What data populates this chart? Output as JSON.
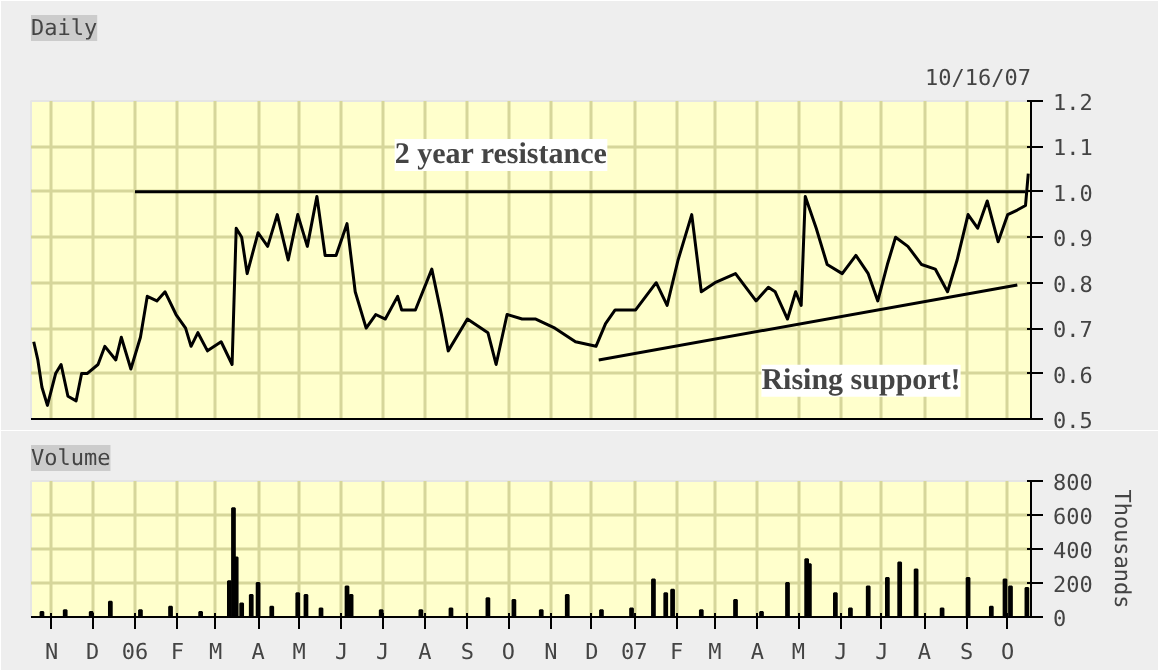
{
  "chart_data": [
    {
      "type": "line",
      "title": "Daily",
      "marker": "none",
      "line_style": "solid",
      "grid": true,
      "tick_labels": "y",
      "xlim": [
        "2005-10-17",
        "2007-10-18"
      ],
      "ylim": [
        0.5,
        1.2
      ],
      "yticks": [
        0.5,
        0.6,
        0.7,
        0.8,
        0.9,
        {
          "value": 1.0,
          "label": "1.0"
        },
        1.1,
        1.2
      ],
      "xticks": [
        {
          "value": "2005-11-01",
          "label": null
        },
        {
          "value": "2005-12-01",
          "label": null
        },
        {
          "value": "2006-01-01",
          "label": null
        },
        {
          "value": "2006-02-01",
          "label": null
        },
        {
          "value": "2006-03-01",
          "label": null
        },
        {
          "value": "2006-04-01",
          "label": null
        },
        {
          "value": "2006-05-01",
          "label": null
        },
        {
          "value": "2006-06-01",
          "label": null
        },
        {
          "value": "2006-07-01",
          "label": null
        },
        {
          "value": "2006-08-01",
          "label": null
        },
        {
          "value": "2006-09-01",
          "label": null
        },
        {
          "value": "2006-10-01",
          "label": null
        },
        {
          "value": "2006-11-01",
          "label": null
        },
        {
          "value": "2006-12-01",
          "label": null
        },
        {
          "value": "2007-01-01",
          "label": null
        },
        {
          "value": "2007-02-01",
          "label": null
        },
        {
          "value": "2007-03-01",
          "label": null
        },
        {
          "value": "2007-04-01",
          "label": null
        },
        {
          "value": "2007-05-01",
          "label": null
        },
        {
          "value": "2007-06-01",
          "label": null
        },
        {
          "value": "2007-07-01",
          "label": null
        },
        {
          "value": "2007-08-01",
          "label": null
        },
        {
          "value": "2007-09-01",
          "label": null
        },
        {
          "value": "2007-10-01",
          "label": null
        }
      ],
      "annotations": [
        "10/16/07",
        "2 year resistance",
        "Rising support!"
      ],
      "series": [
        {
          "color": "#000000",
          "x": [
            "2005-10-19",
            "2005-10-22",
            "2005-10-25",
            "2005-10-29",
            "2005-11-04",
            "2005-11-08",
            "2005-11-13",
            "2005-11-19",
            "2005-11-23",
            "2005-11-27",
            "2005-12-05",
            "2005-12-10",
            "2005-12-18",
            "2005-12-22",
            "2005-12-29",
            "2006-01-05",
            "2006-01-10",
            "2006-01-17",
            "2006-01-23",
            "2006-01-31",
            "2006-02-07",
            "2006-02-11",
            "2006-02-16",
            "2006-02-23",
            "2006-03-05",
            "2006-03-13",
            "2006-03-16",
            "2006-03-20",
            "2006-03-24",
            "2006-04-01",
            "2006-04-08",
            "2006-04-15",
            "2006-04-23",
            "2006-04-30",
            "2006-05-07",
            "2006-05-14",
            "2006-05-20",
            "2006-05-28",
            "2006-06-05",
            "2006-06-11",
            "2006-06-19",
            "2006-06-26",
            "2006-07-03",
            "2006-07-12",
            "2006-07-15",
            "2006-07-25",
            "2006-08-06",
            "2006-08-13",
            "2006-08-18",
            "2006-09-01",
            "2006-09-16",
            "2006-09-22",
            "2006-09-30",
            "2006-10-11",
            "2006-10-21",
            "2006-11-04",
            "2006-11-19",
            "2006-12-04",
            "2006-12-11",
            "2006-12-18",
            "2007-01-02",
            "2007-01-17",
            "2007-01-25",
            "2007-02-02",
            "2007-02-12",
            "2007-02-19",
            "2007-03-01",
            "2007-03-16",
            "2007-03-31",
            "2007-04-09",
            "2007-04-14",
            "2007-04-23",
            "2007-04-29",
            "2007-05-03",
            "2007-05-06",
            "2007-05-14",
            "2007-05-22",
            "2007-06-02",
            "2007-06-12",
            "2007-06-21",
            "2007-06-28",
            "2007-07-05",
            "2007-07-11",
            "2007-07-20",
            "2007-07-30",
            "2007-08-09",
            "2007-08-18",
            "2007-08-25",
            "2007-09-02",
            "2007-09-09",
            "2007-09-16",
            "2007-09-24",
            "2007-10-01",
            "2007-10-08",
            "2007-10-14",
            "2007-10-16"
          ],
          "values": [
            0.67,
            0.63,
            0.57,
            0.53,
            0.6,
            0.62,
            0.55,
            0.54,
            0.6,
            0.6,
            0.62,
            0.66,
            0.63,
            0.68,
            0.61,
            0.68,
            0.77,
            0.76,
            0.78,
            0.73,
            0.7,
            0.66,
            0.69,
            0.65,
            0.67,
            0.62,
            0.92,
            0.9,
            0.82,
            0.91,
            0.88,
            0.95,
            0.85,
            0.95,
            0.88,
            0.99,
            0.86,
            0.86,
            0.93,
            0.78,
            0.7,
            0.73,
            0.72,
            0.77,
            0.74,
            0.74,
            0.83,
            0.73,
            0.65,
            0.72,
            0.69,
            0.62,
            0.73,
            0.72,
            0.72,
            0.7,
            0.67,
            0.66,
            0.71,
            0.74,
            0.74,
            0.8,
            0.75,
            0.85,
            0.95,
            0.78,
            0.8,
            0.82,
            0.76,
            0.79,
            0.78,
            0.72,
            0.78,
            0.75,
            0.99,
            0.92,
            0.84,
            0.82,
            0.86,
            0.82,
            0.76,
            0.84,
            0.9,
            0.88,
            0.84,
            0.83,
            0.78,
            0.85,
            0.95,
            0.92,
            0.98,
            0.89,
            0.95,
            0.96,
            0.97,
            1.04
          ]
        },
        {
          "color": "#000000",
          "x": [
            "2006-01-01",
            "2007-10-14"
          ],
          "values": [
            1.0,
            1.0
          ]
        },
        {
          "color": "#000000",
          "x": [
            "2006-12-06",
            "2007-10-08"
          ],
          "values": [
            0.63,
            0.795
          ]
        }
      ]
    },
    {
      "type": "bar",
      "title": "Volume",
      "ylabel": "Thousands",
      "grid": true,
      "xlim": [
        "2005-10-17",
        "2007-10-18"
      ],
      "ylim": [
        0,
        800
      ],
      "yticks": [
        0,
        200,
        400,
        600,
        800
      ],
      "xticks": [
        {
          "value": "2005-11-01",
          "label": "N"
        },
        {
          "value": "2005-12-01",
          "label": "D"
        },
        {
          "value": "2006-01-01",
          "label": "06"
        },
        {
          "value": "2006-02-01",
          "label": "F"
        },
        {
          "value": "2006-03-01",
          "label": "M"
        },
        {
          "value": "2006-04-01",
          "label": "A"
        },
        {
          "value": "2006-05-01",
          "label": "M"
        },
        {
          "value": "2006-06-01",
          "label": "J"
        },
        {
          "value": "2006-07-01",
          "label": "J"
        },
        {
          "value": "2006-08-01",
          "label": "A"
        },
        {
          "value": "2006-09-01",
          "label": "S"
        },
        {
          "value": "2006-10-01",
          "label": "O"
        },
        {
          "value": "2006-11-01",
          "label": "N"
        },
        {
          "value": "2006-12-01",
          "label": "D"
        },
        {
          "value": "2007-01-01",
          "label": "07"
        },
        {
          "value": "2007-02-01",
          "label": "F"
        },
        {
          "value": "2007-03-01",
          "label": "M"
        },
        {
          "value": "2007-04-01",
          "label": "A"
        },
        {
          "value": "2007-05-01",
          "label": "M"
        },
        {
          "value": "2007-06-01",
          "label": "J"
        },
        {
          "value": "2007-07-01",
          "label": "J"
        },
        {
          "value": "2007-08-01",
          "label": "A"
        },
        {
          "value": "2007-09-01",
          "label": "S"
        },
        {
          "value": "2007-10-01",
          "label": "O"
        }
      ],
      "series": [
        {
          "color": "#000000",
          "x": [
            "2005-10-25",
            "2005-11-11",
            "2005-11-30",
            "2005-12-14",
            "2006-01-05",
            "2006-01-27",
            "2006-02-18",
            "2006-03-11",
            "2006-03-14",
            "2006-03-16",
            "2006-03-20",
            "2006-03-27",
            "2006-04-01",
            "2006-04-11",
            "2006-04-30",
            "2006-05-06",
            "2006-05-17",
            "2006-06-05",
            "2006-06-08",
            "2006-06-30",
            "2006-07-29",
            "2006-08-20",
            "2006-09-16",
            "2006-10-05",
            "2006-10-25",
            "2006-11-13",
            "2006-12-08",
            "2006-12-30",
            "2007-01-15",
            "2007-01-24",
            "2007-01-29",
            "2007-02-19",
            "2007-03-16",
            "2007-04-04",
            "2007-04-23",
            "2007-05-07",
            "2007-05-09",
            "2007-05-28",
            "2007-06-08",
            "2007-06-21",
            "2007-07-05",
            "2007-07-14",
            "2007-07-26",
            "2007-08-14",
            "2007-09-02",
            "2007-09-19",
            "2007-09-29",
            "2007-10-03",
            "2007-10-15"
          ],
          "values": [
            30,
            40,
            30,
            90,
            40,
            60,
            30,
            210,
            640,
            350,
            80,
            130,
            200,
            60,
            140,
            130,
            50,
            180,
            130,
            40,
            40,
            50,
            110,
            100,
            40,
            130,
            40,
            50,
            220,
            140,
            160,
            40,
            100,
            30,
            200,
            340,
            310,
            140,
            50,
            180,
            230,
            320,
            280,
            50,
            230,
            60,
            220,
            180,
            170
          ]
        }
      ]
    }
  ]
}
